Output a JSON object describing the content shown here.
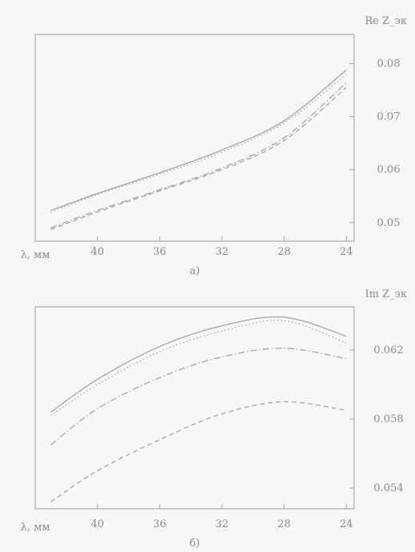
{
  "chart_data": [
    {
      "type": "line",
      "panel_label": "а)",
      "ylabel": "Re Z_эк",
      "xlabel": "λ, мм",
      "x_tick_labels": [
        "40",
        "36",
        "32",
        "28",
        "24"
      ],
      "y_tick_labels": [
        "0.05",
        "0.06",
        "0.07",
        "0.08"
      ],
      "xlim": [
        44,
        23.5
      ],
      "ylim": [
        0.0465,
        0.0855
      ],
      "x": [
        43,
        40,
        36,
        32,
        28,
        24
      ],
      "series": [
        {
          "dash": "solid",
          "values": [
            0.0523,
            0.0555,
            0.0594,
            0.0637,
            0.0692,
            0.0788
          ]
        },
        {
          "dash": "dot",
          "values": [
            0.052,
            0.0553,
            0.0591,
            0.0633,
            0.0688,
            0.0779
          ]
        },
        {
          "dash": "dashdot",
          "values": [
            0.049,
            0.0523,
            0.0562,
            0.0603,
            0.066,
            0.0764
          ]
        },
        {
          "dash": "dash",
          "values": [
            0.0487,
            0.052,
            0.056,
            0.06,
            0.0655,
            0.0755
          ]
        }
      ]
    },
    {
      "type": "line",
      "panel_label": "б)",
      "ylabel": "Im Z_эк",
      "xlabel": "λ, мм",
      "x_tick_labels": [
        "40",
        "36",
        "32",
        "28",
        "24"
      ],
      "y_tick_labels": [
        "0.054",
        "0.058",
        "0.062"
      ],
      "xlim": [
        44,
        23.5
      ],
      "ylim": [
        0.0528,
        0.0645
      ],
      "x": [
        43,
        40,
        36,
        32,
        28,
        24
      ],
      "series": [
        {
          "dash": "solid",
          "values": [
            0.0584,
            0.0603,
            0.0622,
            0.0634,
            0.0639,
            0.0628
          ]
        },
        {
          "dash": "dot",
          "values": [
            0.0582,
            0.06,
            0.0619,
            0.0631,
            0.0637,
            0.0624
          ]
        },
        {
          "dash": "dashdot",
          "values": [
            0.0565,
            0.0586,
            0.0604,
            0.0616,
            0.0621,
            0.0615
          ]
        },
        {
          "dash": "dash",
          "values": [
            0.0532,
            0.055,
            0.0568,
            0.0583,
            0.059,
            0.0585
          ]
        }
      ]
    }
  ]
}
